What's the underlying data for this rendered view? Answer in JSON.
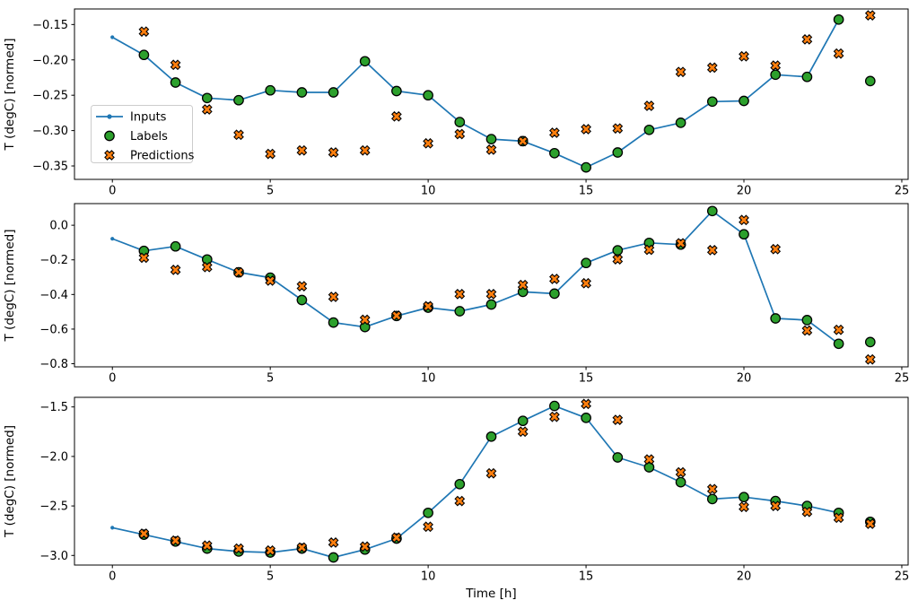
{
  "figure": {
    "kind": "matplotlib-multistep-timeseries",
    "background": "#ffffff",
    "xlabel": "Time [h]",
    "ylabel": "T (degC) [normed]"
  },
  "colors": {
    "inputs": "#1f77b4",
    "labels": "#2ca02c",
    "predictions": "#ff7f0e",
    "marker_edge": "#000000",
    "axis": "#000000",
    "text": "#000000",
    "legend_bg": "#ffffff",
    "legend_border": "#cccccc"
  },
  "legend": {
    "items": [
      {
        "label": "Inputs",
        "marker": "line-with-dot"
      },
      {
        "label": "Labels",
        "marker": "filled-circle"
      },
      {
        "label": "Predictions",
        "marker": "x-cross"
      }
    ]
  },
  "chart_data": [
    {
      "type": "line",
      "title": "",
      "xlabel": "",
      "ylabel": "T (degC) [normed]",
      "xlim": [
        -1.2,
        25.2
      ],
      "ylim": [
        -0.369,
        -0.128
      ],
      "grid": false,
      "legend": true,
      "x_ticks": [
        0,
        5,
        10,
        15,
        20,
        25
      ],
      "x_tick_labels": [
        "0",
        "5",
        "10",
        "15",
        "20",
        "25"
      ],
      "y_ticks": [
        -0.15,
        -0.2,
        -0.25,
        -0.3,
        -0.35
      ],
      "y_tick_labels": [
        "−0.15",
        "−0.20",
        "−0.25",
        "−0.30",
        "−0.35"
      ],
      "series": [
        {
          "name": "Inputs",
          "type": "line+dot",
          "x": [
            0,
            1,
            2,
            3,
            4,
            5,
            6,
            7,
            8,
            9,
            10,
            11,
            12,
            13,
            14,
            15,
            16,
            17,
            18,
            19,
            20,
            21,
            22,
            23
          ],
          "y": [
            -0.168,
            -0.193,
            -0.232,
            -0.254,
            -0.257,
            -0.243,
            -0.246,
            -0.246,
            -0.202,
            -0.244,
            -0.25,
            -0.288,
            -0.312,
            -0.315,
            -0.332,
            -0.352,
            -0.331,
            -0.299,
            -0.289,
            -0.259,
            -0.258,
            -0.221,
            -0.224,
            -0.143
          ]
        },
        {
          "name": "Labels",
          "type": "scatter-circle",
          "x": [
            1,
            2,
            3,
            4,
            5,
            6,
            7,
            8,
            9,
            10,
            11,
            12,
            13,
            14,
            15,
            16,
            17,
            18,
            19,
            20,
            21,
            22,
            23,
            24
          ],
          "y": [
            -0.193,
            -0.232,
            -0.254,
            -0.257,
            -0.243,
            -0.246,
            -0.246,
            -0.202,
            -0.244,
            -0.25,
            -0.288,
            -0.312,
            -0.315,
            -0.332,
            -0.352,
            -0.331,
            -0.299,
            -0.289,
            -0.259,
            -0.258,
            -0.221,
            -0.224,
            -0.143,
            -0.23
          ]
        },
        {
          "name": "Predictions",
          "type": "scatter-x",
          "x": [
            1,
            2,
            3,
            4,
            5,
            6,
            7,
            8,
            9,
            10,
            11,
            12,
            13,
            14,
            15,
            16,
            17,
            18,
            19,
            20,
            21,
            22,
            23,
            24
          ],
          "y": [
            -0.16,
            -0.207,
            -0.27,
            -0.306,
            -0.333,
            -0.328,
            -0.331,
            -0.328,
            -0.28,
            -0.318,
            -0.305,
            -0.327,
            -0.315,
            -0.303,
            -0.298,
            -0.297,
            -0.265,
            -0.217,
            -0.211,
            -0.195,
            -0.208,
            -0.171,
            -0.191,
            -0.137
          ]
        }
      ]
    },
    {
      "type": "line",
      "title": "",
      "xlabel": "",
      "ylabel": "T (degC) [normed]",
      "xlim": [
        -1.2,
        25.2
      ],
      "ylim": [
        -0.818,
        0.125
      ],
      "grid": false,
      "legend": false,
      "x_ticks": [
        0,
        5,
        10,
        15,
        20,
        25
      ],
      "x_tick_labels": [
        "0",
        "5",
        "10",
        "15",
        "20",
        "25"
      ],
      "y_ticks": [
        0.0,
        -0.2,
        -0.4,
        -0.6,
        -0.8
      ],
      "y_tick_labels": [
        "0.0",
        "−0.2",
        "−0.4",
        "−0.6",
        "−0.8"
      ],
      "series": [
        {
          "name": "Inputs",
          "type": "line+dot",
          "x": [
            0,
            1,
            2,
            3,
            4,
            5,
            6,
            7,
            8,
            9,
            10,
            11,
            12,
            13,
            14,
            15,
            16,
            17,
            18,
            19,
            20,
            21,
            22,
            23
          ],
          "y": [
            -0.078,
            -0.148,
            -0.122,
            -0.198,
            -0.272,
            -0.303,
            -0.432,
            -0.562,
            -0.588,
            -0.524,
            -0.476,
            -0.497,
            -0.458,
            -0.385,
            -0.395,
            -0.218,
            -0.145,
            -0.102,
            -0.112,
            0.082,
            -0.052,
            -0.538,
            -0.548,
            -0.685
          ]
        },
        {
          "name": "Labels",
          "type": "scatter-circle",
          "x": [
            1,
            2,
            3,
            4,
            5,
            6,
            7,
            8,
            9,
            10,
            11,
            12,
            13,
            14,
            15,
            16,
            17,
            18,
            19,
            20,
            21,
            22,
            23,
            24
          ],
          "y": [
            -0.148,
            -0.122,
            -0.198,
            -0.272,
            -0.303,
            -0.432,
            -0.562,
            -0.588,
            -0.524,
            -0.476,
            -0.497,
            -0.458,
            -0.385,
            -0.395,
            -0.218,
            -0.145,
            -0.102,
            -0.112,
            0.082,
            -0.052,
            -0.538,
            -0.548,
            -0.685,
            -0.675
          ]
        },
        {
          "name": "Predictions",
          "type": "scatter-x",
          "x": [
            1,
            2,
            3,
            4,
            5,
            6,
            7,
            8,
            9,
            10,
            11,
            12,
            13,
            14,
            15,
            16,
            17,
            18,
            19,
            20,
            21,
            22,
            23,
            24
          ],
          "y": [
            -0.188,
            -0.258,
            -0.242,
            -0.272,
            -0.32,
            -0.352,
            -0.414,
            -0.546,
            -0.522,
            -0.468,
            -0.398,
            -0.398,
            -0.345,
            -0.31,
            -0.335,
            -0.197,
            -0.142,
            -0.104,
            -0.144,
            0.03,
            -0.138,
            -0.608,
            -0.604,
            -0.775
          ]
        }
      ]
    },
    {
      "type": "line",
      "title": "",
      "xlabel": "Time [h]",
      "ylabel": "T (degC) [normed]",
      "xlim": [
        -1.2,
        25.2
      ],
      "ylim": [
        -3.097,
        -1.403
      ],
      "grid": false,
      "legend": false,
      "x_ticks": [
        0,
        5,
        10,
        15,
        20,
        25
      ],
      "x_tick_labels": [
        "0",
        "5",
        "10",
        "15",
        "20",
        "25"
      ],
      "y_ticks": [
        -1.5,
        -2.0,
        -2.5,
        -3.0
      ],
      "y_tick_labels": [
        "−1.5",
        "−2.0",
        "−2.5",
        "−3.0"
      ],
      "series": [
        {
          "name": "Inputs",
          "type": "line+dot",
          "x": [
            0,
            1,
            2,
            3,
            4,
            5,
            6,
            7,
            8,
            9,
            10,
            11,
            12,
            13,
            14,
            15,
            16,
            17,
            18,
            19,
            20,
            21,
            22,
            23
          ],
          "y": [
            -2.72,
            -2.79,
            -2.86,
            -2.93,
            -2.96,
            -2.97,
            -2.93,
            -3.02,
            -2.94,
            -2.83,
            -2.57,
            -2.28,
            -1.8,
            -1.64,
            -1.49,
            -1.61,
            -2.01,
            -2.11,
            -2.26,
            -2.43,
            -2.41,
            -2.45,
            -2.5,
            -2.57
          ]
        },
        {
          "name": "Labels",
          "type": "scatter-circle",
          "x": [
            1,
            2,
            3,
            4,
            5,
            6,
            7,
            8,
            9,
            10,
            11,
            12,
            13,
            14,
            15,
            16,
            17,
            18,
            19,
            20,
            21,
            22,
            23,
            24
          ],
          "y": [
            -2.79,
            -2.86,
            -2.93,
            -2.96,
            -2.97,
            -2.93,
            -3.02,
            -2.94,
            -2.83,
            -2.57,
            -2.28,
            -1.8,
            -1.64,
            -1.49,
            -1.61,
            -2.01,
            -2.11,
            -2.26,
            -2.43,
            -2.41,
            -2.45,
            -2.5,
            -2.57,
            -2.66
          ]
        },
        {
          "name": "Predictions",
          "type": "scatter-x",
          "x": [
            1,
            2,
            3,
            4,
            5,
            6,
            7,
            8,
            9,
            10,
            11,
            12,
            13,
            14,
            15,
            16,
            17,
            18,
            19,
            20,
            21,
            22,
            23,
            24
          ],
          "y": [
            -2.78,
            -2.85,
            -2.9,
            -2.93,
            -2.95,
            -2.92,
            -2.87,
            -2.91,
            -2.82,
            -2.71,
            -2.45,
            -2.17,
            -1.75,
            -1.6,
            -1.47,
            -1.63,
            -2.03,
            -2.16,
            -2.33,
            -2.51,
            -2.5,
            -2.56,
            -2.62,
            -2.68
          ]
        }
      ]
    }
  ]
}
